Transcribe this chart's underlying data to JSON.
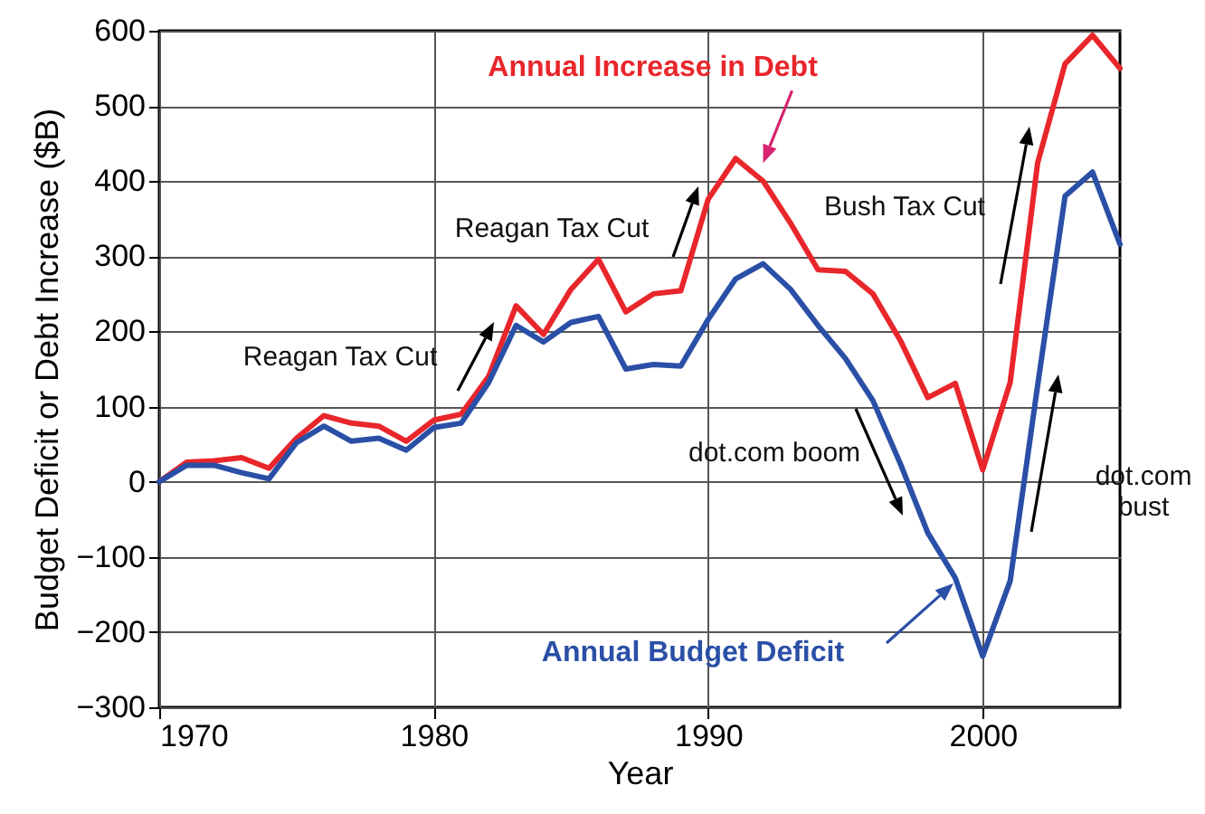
{
  "chart_data": {
    "type": "line",
    "xlabel": "Year",
    "ylabel": "Budget Deficit or Debt Increase ($B)",
    "x": [
      1970,
      1971,
      1972,
      1973,
      1974,
      1975,
      1976,
      1977,
      1978,
      1979,
      1980,
      1981,
      1982,
      1983,
      1984,
      1985,
      1986,
      1987,
      1988,
      1989,
      1990,
      1991,
      1992,
      1993,
      1994,
      1995,
      1996,
      1997,
      1998,
      1999,
      2000,
      2001,
      2002,
      2003,
      2004,
      2005
    ],
    "series": [
      {
        "name": "Annual Increase in Debt",
        "color": "#e8262b",
        "values": [
          0,
          26,
          28,
          32,
          18,
          58,
          88,
          78,
          74,
          54,
          82,
          90,
          140,
          234,
          196,
          256,
          296,
          226,
          250,
          254,
          376,
          430,
          400,
          344,
          282,
          280,
          250,
          188,
          112,
          131,
          16,
          132,
          424,
          556,
          594,
          550
        ]
      },
      {
        "name": "Annual Budget Deficit",
        "color": "#2a4fa6",
        "values": [
          0,
          22,
          22,
          12,
          4,
          52,
          74,
          54,
          58,
          42,
          72,
          78,
          132,
          208,
          186,
          212,
          220,
          150,
          156,
          154,
          216,
          270,
          290,
          256,
          208,
          164,
          108,
          24,
          -68,
          -128,
          -232,
          -132,
          128,
          380,
          412,
          316
        ]
      }
    ],
    "xlim": [
      1970,
      2005
    ],
    "xticks": [
      1970,
      1980,
      1990,
      2000
    ],
    "ylim": [
      -300,
      600
    ],
    "yticks": [
      -300,
      -200,
      -100,
      0,
      100,
      200,
      300,
      400,
      500,
      600
    ],
    "grid": true,
    "legend": "top",
    "marker": "none",
    "line_style": "solid",
    "annotations": [
      "Reagan Tax Cut",
      "Reagan Tax Cut",
      "Bush Tax Cut",
      "dot.com boom",
      "dot.com bust"
    ]
  }
}
